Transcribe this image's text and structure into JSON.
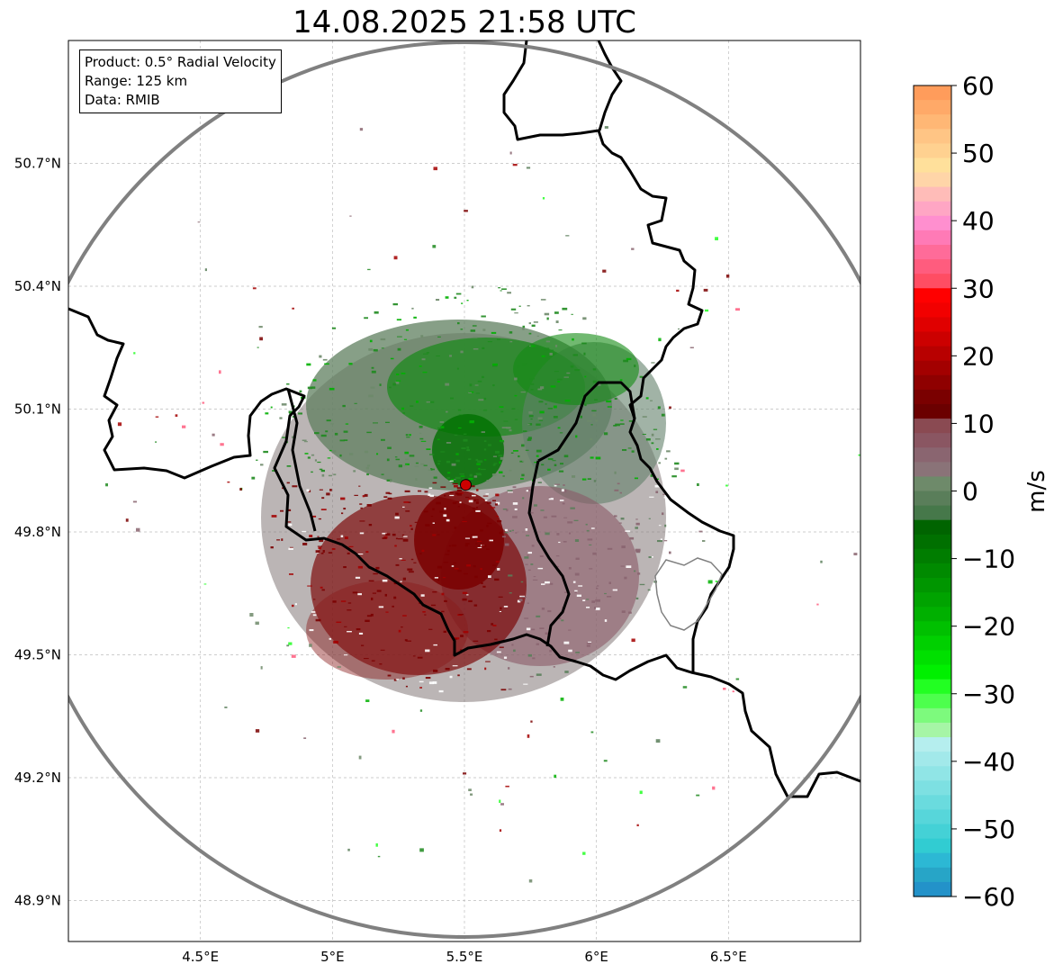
{
  "title": "14.08.2025 21:58 UTC",
  "info": {
    "product": "Product: 0.5° Radial Velocity",
    "range": "Range: 125 km",
    "data": "Data: RMIB"
  },
  "axes": {
    "lat_ticks": [
      "50.7°N",
      "50.4°N",
      "50.1°N",
      "49.8°N",
      "49.5°N",
      "49.2°N",
      "48.9°N"
    ],
    "lon_ticks": [
      "4.5°E",
      "5°E",
      "5.5°E",
      "6°E",
      "6.5°E"
    ],
    "lat_values": [
      50.7,
      50.4,
      50.1,
      49.8,
      49.5,
      49.2,
      48.9
    ],
    "lon_values": [
      4.5,
      5.0,
      5.5,
      6.0,
      6.5
    ],
    "lon_range": [
      4.0,
      7.0
    ],
    "lat_range": [
      48.8,
      51.0
    ],
    "grid": true
  },
  "radar": {
    "site": {
      "lon": 5.505,
      "lat": 49.915
    },
    "range_km": 125,
    "site_color": "#cc0000",
    "range_ring_color": "#808080"
  },
  "colorbar": {
    "label": "m/s",
    "ticks": [
      "60",
      "50",
      "40",
      "30",
      "20",
      "10",
      "0",
      "−10",
      "−20",
      "−30",
      "−40",
      "−50",
      "−60"
    ],
    "tick_values": [
      60,
      50,
      40,
      30,
      20,
      10,
      0,
      -10,
      -20,
      -30,
      -40,
      -50,
      -60
    ],
    "range": [
      -60,
      60
    ],
    "colors_top_to_bottom": [
      "#ff9c5b",
      "#ffa968",
      "#ffb775",
      "#ffc585",
      "#ffd190",
      "#ffe09b",
      "#ffd5a8",
      "#ffbcb8",
      "#ffa6c4",
      "#ff8fcf",
      "#ff7ab6",
      "#ff6b99",
      "#ff5c7e",
      "#ff4d63",
      "#ff0000",
      "#f20000",
      "#e00000",
      "#cc0000",
      "#b80000",
      "#a30000",
      "#8f0000",
      "#7a0000",
      "#6b0000",
      "#8a4a52",
      "#8a5662",
      "#8a6570",
      "#8a7378",
      "#6e8a6a",
      "#5a7e5a",
      "#46784a",
      "#006400",
      "#007000",
      "#007d00",
      "#008a00",
      "#009600",
      "#00a300",
      "#00b000",
      "#00c000",
      "#00d000",
      "#00e000",
      "#00f000",
      "#22ff22",
      "#4dff4d",
      "#7dfa7d",
      "#a6f5a6",
      "#b5eeee",
      "#a2e9ea",
      "#90e5e6",
      "#7de0e2",
      "#6adbde",
      "#57d6da",
      "#44d1d6",
      "#31ccd2",
      "#2cb8d4",
      "#27a5c7",
      "#2392c9"
    ]
  },
  "colors": {
    "border": "#000000",
    "luxembourg_inner_border": "#808080",
    "grid": "#bdbdbd"
  }
}
